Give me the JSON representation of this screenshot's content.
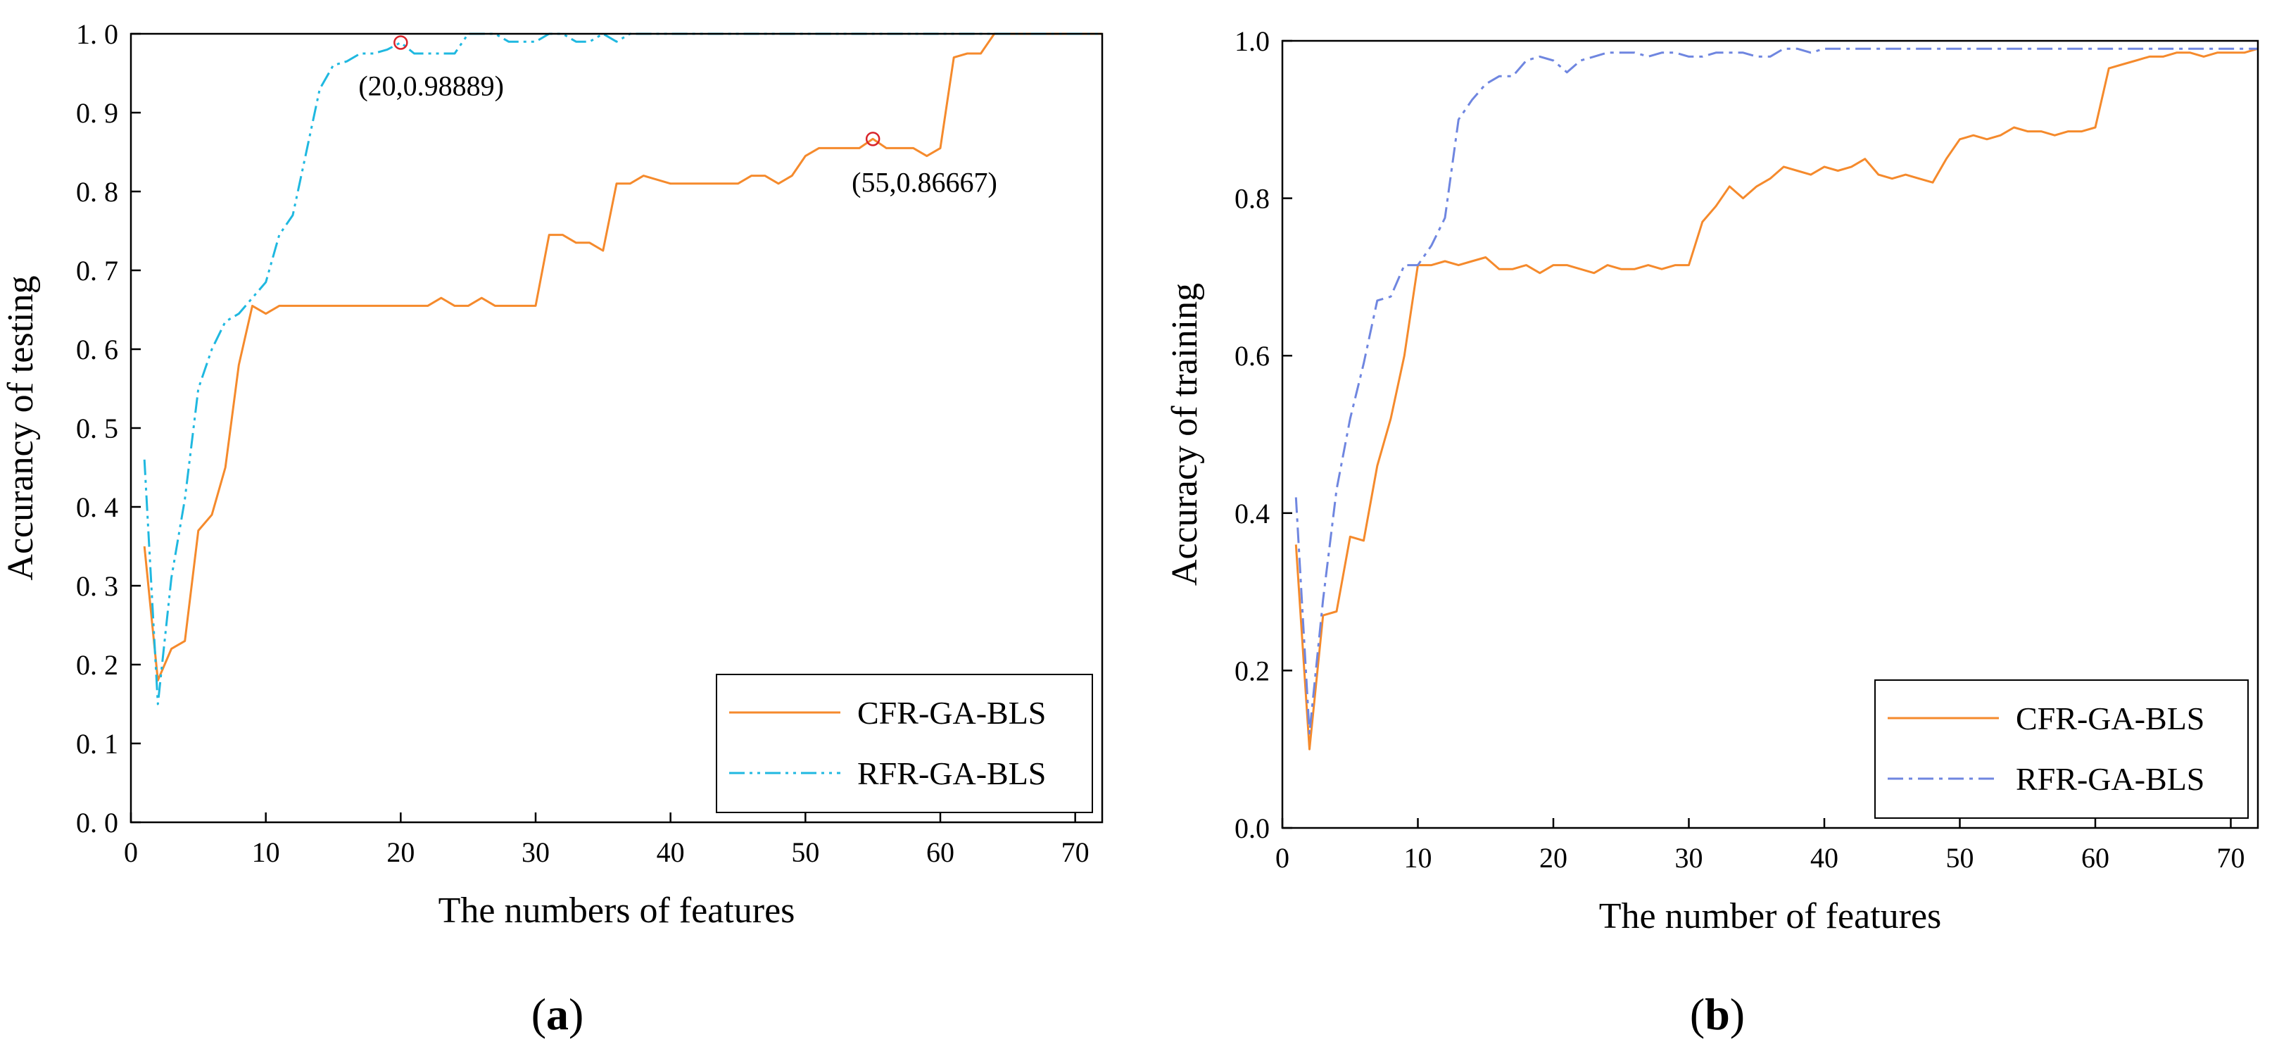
{
  "chart_data": [
    {
      "type": "line",
      "panel_label": "a",
      "title": "",
      "xlabel": "The numbers of features",
      "ylabel": "Accurancy of testing",
      "xlim": [
        0,
        72
      ],
      "ylim": [
        0,
        1.0
      ],
      "xticks": [
        0,
        10,
        20,
        30,
        40,
        50,
        60,
        70
      ],
      "yticks": [
        0,
        0.1,
        0.2,
        0.3,
        0.4,
        0.5,
        0.6,
        0.7,
        0.8,
        0.9,
        1.0
      ],
      "ytick_labels": [
        "0. 0",
        "0. 1",
        "0. 2",
        "0. 3",
        "0. 4",
        "0. 5",
        "0. 6",
        "0. 7",
        "0. 8",
        "0. 9",
        "1. 0"
      ],
      "grid": false,
      "legend_position": "bottom-right",
      "series": [
        {
          "name": "CFR-GA-BLS",
          "color": "#f58a2c",
          "style": "solid",
          "x": [
            1,
            2,
            3,
            4,
            5,
            6,
            7,
            8,
            9,
            10,
            11,
            12,
            13,
            14,
            15,
            16,
            17,
            18,
            19,
            20,
            21,
            22,
            23,
            24,
            25,
            26,
            27,
            28,
            29,
            30,
            31,
            32,
            33,
            34,
            35,
            36,
            37,
            38,
            39,
            40,
            41,
            42,
            43,
            44,
            45,
            46,
            47,
            48,
            49,
            50,
            51,
            52,
            53,
            54,
            55,
            56,
            57,
            58,
            59,
            60,
            61,
            62,
            63,
            64,
            65,
            66,
            67,
            68,
            69,
            70,
            71,
            72
          ],
          "y": [
            0.35,
            0.18,
            0.22,
            0.23,
            0.37,
            0.39,
            0.45,
            0.58,
            0.655,
            0.645,
            0.655,
            0.655,
            0.655,
            0.655,
            0.655,
            0.655,
            0.655,
            0.655,
            0.655,
            0.655,
            0.655,
            0.655,
            0.665,
            0.655,
            0.655,
            0.665,
            0.655,
            0.655,
            0.655,
            0.655,
            0.745,
            0.745,
            0.735,
            0.735,
            0.725,
            0.81,
            0.81,
            0.82,
            0.815,
            0.81,
            0.81,
            0.81,
            0.81,
            0.81,
            0.81,
            0.82,
            0.82,
            0.81,
            0.82,
            0.845,
            0.855,
            0.855,
            0.855,
            0.855,
            0.86667,
            0.855,
            0.855,
            0.855,
            0.845,
            0.855,
            0.97,
            0.975,
            0.975,
            1.0,
            1.0,
            1.0,
            1.0,
            1.0,
            1.0,
            1.0,
            1.0,
            1.0
          ]
        },
        {
          "name": "RFR-GA-BLS",
          "color": "#1fb8e0",
          "style": "dashdotdot",
          "x": [
            1,
            2,
            3,
            4,
            5,
            6,
            7,
            8,
            9,
            10,
            11,
            12,
            13,
            14,
            15,
            16,
            17,
            18,
            19,
            20,
            21,
            22,
            23,
            24,
            25,
            26,
            27,
            28,
            29,
            30,
            31,
            32,
            33,
            34,
            35,
            36,
            37,
            38,
            39,
            40,
            41,
            42,
            43,
            44,
            45,
            46,
            47,
            48,
            49,
            50,
            51,
            52,
            53,
            54,
            55,
            56,
            57,
            58,
            59,
            60,
            61,
            62,
            63,
            64,
            65,
            66,
            67,
            68,
            69,
            70,
            71,
            72
          ],
          "y": [
            0.46,
            0.15,
            0.31,
            0.41,
            0.55,
            0.6,
            0.635,
            0.645,
            0.665,
            0.685,
            0.745,
            0.77,
            0.85,
            0.93,
            0.96,
            0.965,
            0.975,
            0.975,
            0.98,
            0.98889,
            0.975,
            0.975,
            0.975,
            0.975,
            1.0,
            1.0,
            1.0,
            0.99,
            0.99,
            0.99,
            1.0,
            1.0,
            0.99,
            0.99,
            1.0,
            0.99,
            1.0,
            1.0,
            1.0,
            1.0,
            1.0,
            1.0,
            1.0,
            1.0,
            1.0,
            1.0,
            1.0,
            1.0,
            1.0,
            1.0,
            1.0,
            1.0,
            1.0,
            1.0,
            1.0,
            1.0,
            1.0,
            1.0,
            1.0,
            1.0,
            1.0,
            1.0,
            1.0,
            1.0,
            1.0,
            1.0,
            1.0,
            1.0,
            1.0,
            1.0,
            1.0,
            1.0
          ]
        }
      ],
      "annotations": [
        {
          "x": 20,
          "y": 0.98889,
          "label": "(20,0.98889)"
        },
        {
          "x": 55,
          "y": 0.86667,
          "label": "(55,0.86667)"
        }
      ]
    },
    {
      "type": "line",
      "panel_label": "b",
      "title": "",
      "xlabel": "The number of features",
      "ylabel": "Accuracy of training",
      "xlim": [
        0,
        72
      ],
      "ylim": [
        0,
        1.0
      ],
      "xticks": [
        0,
        10,
        20,
        30,
        40,
        50,
        60,
        70
      ],
      "yticks": [
        0,
        0.2,
        0.4,
        0.6,
        0.8,
        1.0
      ],
      "ytick_labels": [
        "0.0",
        "0.2",
        "0.4",
        "0.6",
        "0.8",
        "1.0"
      ],
      "grid": false,
      "legend_position": "bottom-right",
      "series": [
        {
          "name": "CFR-GA-BLS",
          "color": "#f58a2c",
          "style": "solid",
          "x": [
            1,
            2,
            3,
            4,
            5,
            6,
            7,
            8,
            9,
            10,
            11,
            12,
            13,
            14,
            15,
            16,
            17,
            18,
            19,
            20,
            21,
            22,
            23,
            24,
            25,
            26,
            27,
            28,
            29,
            30,
            31,
            32,
            33,
            34,
            35,
            36,
            37,
            38,
            39,
            40,
            41,
            42,
            43,
            44,
            45,
            46,
            47,
            48,
            49,
            50,
            51,
            52,
            53,
            54,
            55,
            56,
            57,
            58,
            59,
            60,
            61,
            62,
            63,
            64,
            65,
            66,
            67,
            68,
            69,
            70,
            71,
            72
          ],
          "y": [
            0.36,
            0.1,
            0.27,
            0.275,
            0.37,
            0.365,
            0.46,
            0.52,
            0.6,
            0.715,
            0.715,
            0.72,
            0.715,
            0.72,
            0.725,
            0.71,
            0.71,
            0.715,
            0.705,
            0.715,
            0.715,
            0.71,
            0.705,
            0.715,
            0.71,
            0.71,
            0.715,
            0.71,
            0.715,
            0.715,
            0.77,
            0.79,
            0.815,
            0.8,
            0.815,
            0.825,
            0.84,
            0.835,
            0.83,
            0.84,
            0.835,
            0.84,
            0.85,
            0.83,
            0.825,
            0.83,
            0.825,
            0.82,
            0.85,
            0.875,
            0.88,
            0.875,
            0.88,
            0.89,
            0.885,
            0.885,
            0.88,
            0.885,
            0.885,
            0.89,
            0.965,
            0.97,
            0.975,
            0.98,
            0.98,
            0.985,
            0.985,
            0.98,
            0.985,
            0.985,
            0.985,
            0.99
          ]
        },
        {
          "name": "RFR-GA-BLS",
          "color": "#6f86e0",
          "style": "dashdot",
          "x": [
            1,
            2,
            3,
            4,
            5,
            6,
            7,
            8,
            9,
            10,
            11,
            12,
            13,
            14,
            15,
            16,
            17,
            18,
            19,
            20,
            21,
            22,
            23,
            24,
            25,
            26,
            27,
            28,
            29,
            30,
            31,
            32,
            33,
            34,
            35,
            36,
            37,
            38,
            39,
            40,
            41,
            42,
            43,
            44,
            45,
            46,
            47,
            48,
            49,
            50,
            51,
            52,
            53,
            54,
            55,
            56,
            57,
            58,
            59,
            60,
            61,
            62,
            63,
            64,
            65,
            66,
            67,
            68,
            69,
            70,
            71,
            72
          ],
          "y": [
            0.42,
            0.12,
            0.29,
            0.43,
            0.52,
            0.59,
            0.67,
            0.675,
            0.715,
            0.715,
            0.74,
            0.775,
            0.9,
            0.925,
            0.945,
            0.955,
            0.955,
            0.975,
            0.98,
            0.975,
            0.96,
            0.975,
            0.98,
            0.985,
            0.985,
            0.985,
            0.98,
            0.985,
            0.985,
            0.98,
            0.98,
            0.985,
            0.985,
            0.985,
            0.98,
            0.98,
            0.99,
            0.99,
            0.985,
            0.99,
            0.99,
            0.99,
            0.99,
            0.99,
            0.99,
            0.99,
            0.99,
            0.99,
            0.99,
            0.99,
            0.99,
            0.99,
            0.99,
            0.99,
            0.99,
            0.99,
            0.99,
            0.99,
            0.99,
            0.99,
            0.99,
            0.99,
            0.99,
            0.99,
            0.99,
            0.99,
            0.99,
            0.99,
            0.99,
            0.99,
            0.99,
            0.99
          ]
        }
      ],
      "annotations": []
    }
  ]
}
